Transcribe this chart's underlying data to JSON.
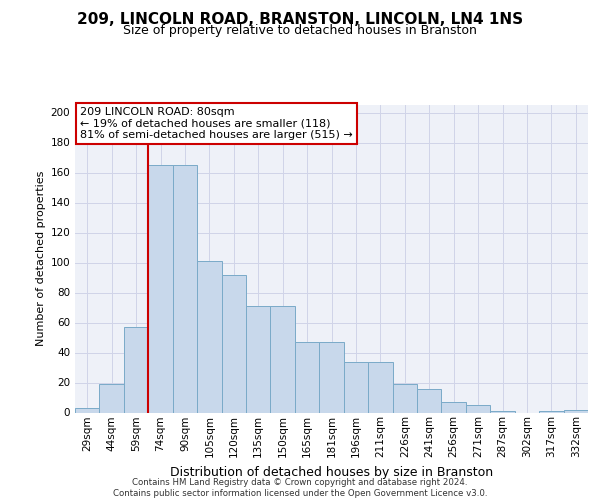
{
  "title": "209, LINCOLN ROAD, BRANSTON, LINCOLN, LN4 1NS",
  "subtitle": "Size of property relative to detached houses in Branston",
  "xlabel": "Distribution of detached houses by size in Branston",
  "ylabel": "Number of detached properties",
  "bar_color": "#c8d8eb",
  "bar_edge_color": "#7aaac8",
  "background_color": "#eef1f8",
  "grid_color": "#d0d4e8",
  "categories": [
    "29sqm",
    "44sqm",
    "59sqm",
    "74sqm",
    "90sqm",
    "105sqm",
    "120sqm",
    "135sqm",
    "150sqm",
    "165sqm",
    "181sqm",
    "196sqm",
    "211sqm",
    "226sqm",
    "241sqm",
    "256sqm",
    "271sqm",
    "287sqm",
    "302sqm",
    "317sqm",
    "332sqm"
  ],
  "bar_values": [
    3,
    19,
    57,
    165,
    165,
    101,
    92,
    71,
    71,
    47,
    47,
    34,
    34,
    19,
    16,
    7,
    5,
    1,
    0,
    1,
    2
  ],
  "annotation_text": "209 LINCOLN ROAD: 80sqm\n← 19% of detached houses are smaller (118)\n81% of semi-detached houses are larger (515) →",
  "vline_bar_index": 3,
  "annotation_box_color": "#cc0000",
  "yticks": [
    0,
    20,
    40,
    60,
    80,
    100,
    120,
    140,
    160,
    180,
    200
  ],
  "footer": "Contains HM Land Registry data © Crown copyright and database right 2024.\nContains public sector information licensed under the Open Government Licence v3.0.",
  "ylim": [
    0,
    205
  ],
  "title_fontsize": 11,
  "subtitle_fontsize": 9,
  "ylabel_fontsize": 8,
  "xlabel_fontsize": 9,
  "tick_fontsize": 7.5,
  "annotation_fontsize": 8
}
